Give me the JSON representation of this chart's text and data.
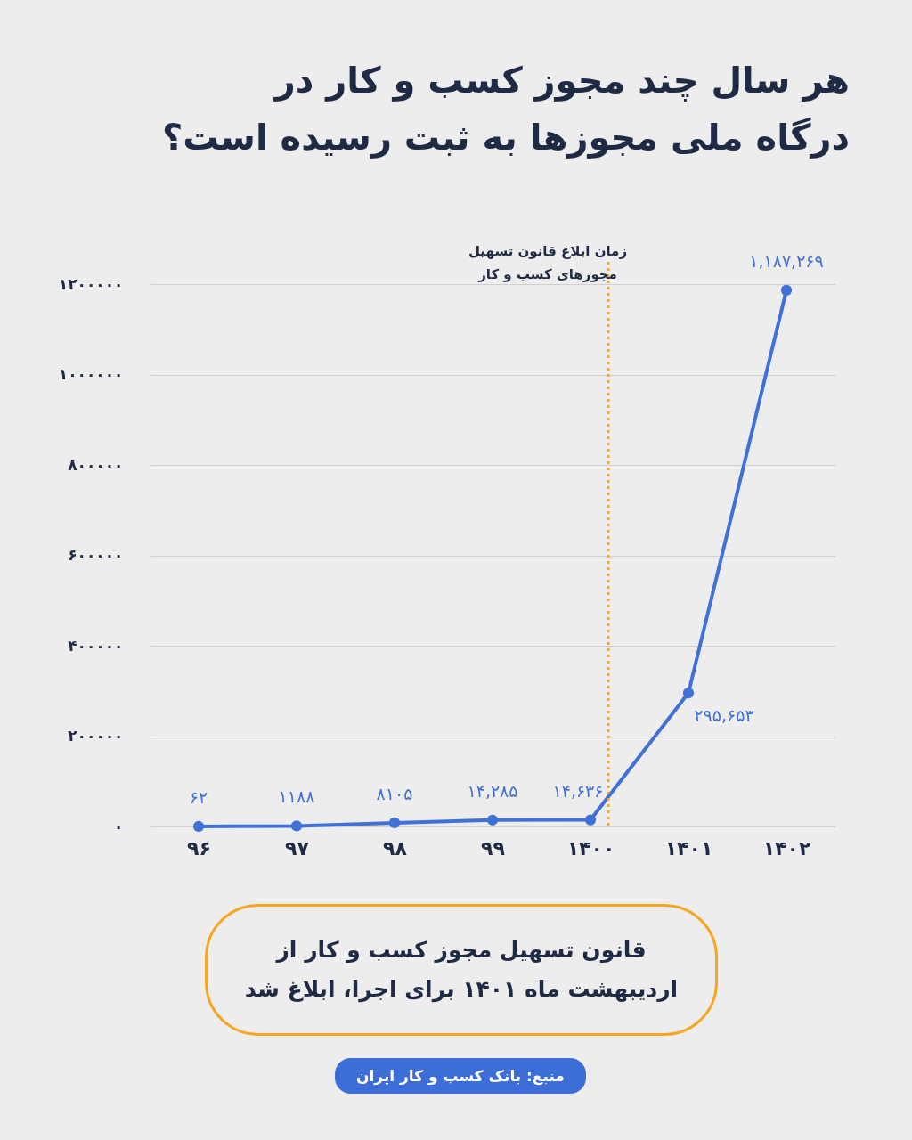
{
  "chart_data": {
    "type": "line",
    "title": "هر سال چند مجوز کسب و کار در\nدرگاه ملی مجوزها به ثبت رسیده است؟",
    "categories": [
      "۹۶",
      "۹۷",
      "۹۸",
      "۹۹",
      "۱۴۰۰",
      "۱۴۰۱",
      "۱۴۰۲"
    ],
    "series": [
      {
        "color": "#4270d9",
        "values": [
          62,
          1188,
          8105,
          14285,
          14636,
          295653,
          1187269
        ],
        "value_labels": [
          "۶۲",
          "۱۱۸۸",
          "۸۱۰۵",
          "۱۴,۲۸۵",
          "۱۴,۶۳۶",
          "۲۹۵,۶۵۳",
          "۱,۱۸۷,۲۶۹"
        ]
      }
    ],
    "ylim": [
      0,
      1250000
    ],
    "yticks": [
      {
        "value": 0,
        "label": "۰"
      },
      {
        "value": 200000,
        "label": "۲۰۰۰۰۰"
      },
      {
        "value": 400000,
        "label": "۴۰۰۰۰۰"
      },
      {
        "value": 600000,
        "label": "۶۰۰۰۰۰"
      },
      {
        "value": 800000,
        "label": "۸۰۰۰۰۰"
      },
      {
        "value": 1000000,
        "label": "۱۰۰۰۰۰۰"
      },
      {
        "value": 1200000,
        "label": "۱۲۰۰۰۰۰"
      }
    ],
    "grid": "y",
    "marker": "circle",
    "line_style": "solid",
    "ref_lines": [
      {
        "axis": "x",
        "value": "۱۴۰۰",
        "label": "زمان ابلاغ قانون تسهیل\nمجوزهای کسب و کار",
        "color": "#f5a623",
        "line_style": "dotted"
      }
    ],
    "annotations": [
      "قانون تسهیل مجوز کسب و کار از\nاردیبهشت ماه ۱۴۰۱ برای اجرا، ابلاغ شد",
      "منبع: بانک کسب و کار ایران"
    ]
  }
}
